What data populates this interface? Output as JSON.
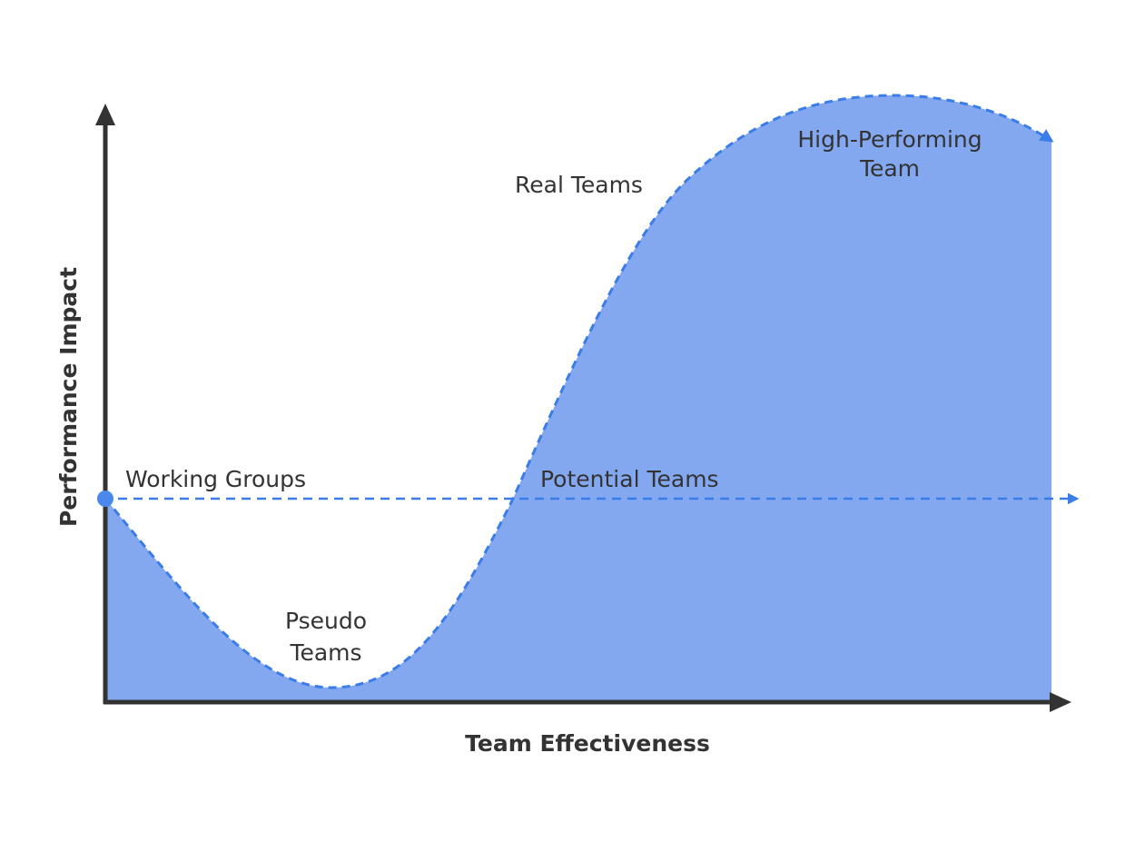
{
  "axes": {
    "x_label": "Team Effectiveness",
    "y_label": "Performance Impact"
  },
  "stages": [
    {
      "lines": [
        "Working Groups"
      ]
    },
    {
      "lines": [
        "Pseudo",
        "Teams"
      ]
    },
    {
      "lines": [
        "Potential Teams"
      ]
    },
    {
      "lines": [
        "Real Teams"
      ]
    },
    {
      "lines": [
        "High-Performing",
        "Team"
      ]
    }
  ]
}
